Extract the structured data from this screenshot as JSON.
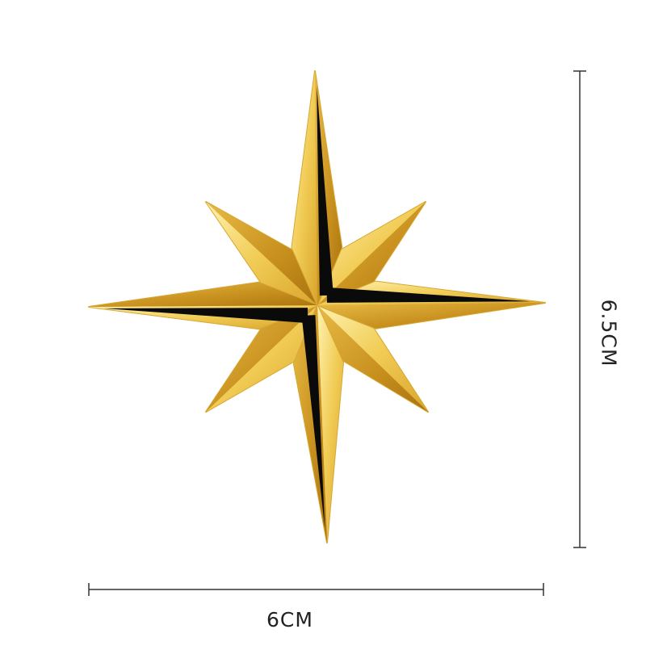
{
  "product": {
    "name_icon": "compass-star-emblem",
    "colors": {
      "gold_light": "#f6dc7a",
      "gold_mid": "#e2b23a",
      "gold_dark": "#b07a12",
      "inlay": "#0a0a0a"
    }
  },
  "dimensions": {
    "width_label": "6CM",
    "height_label": "6.5CM",
    "line_color": "#333333"
  }
}
